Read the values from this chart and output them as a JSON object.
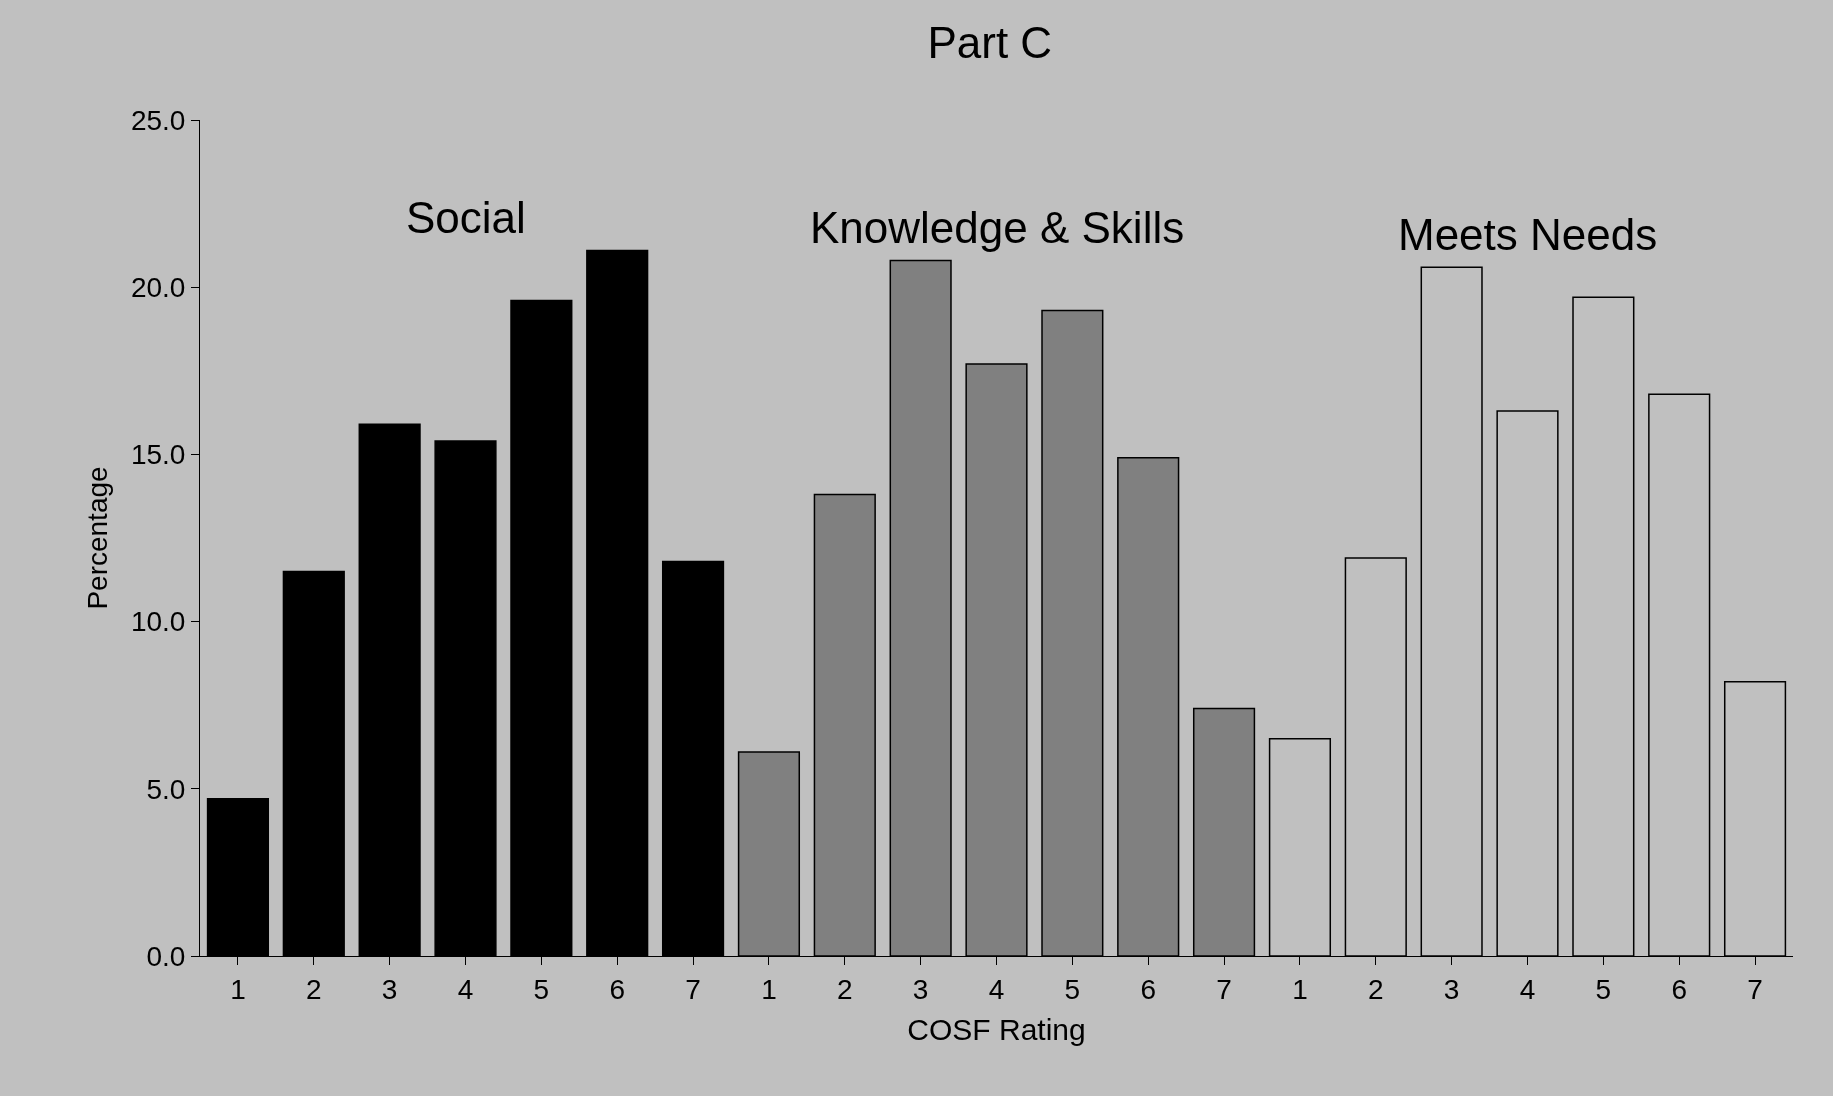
{
  "chart_data": {
    "type": "bar",
    "title": "Part C",
    "xlabel": "COSF Rating",
    "ylabel": "Percentage",
    "categories": [
      "1",
      "2",
      "3",
      "4",
      "5",
      "6",
      "7",
      "1",
      "2",
      "3",
      "4",
      "5",
      "6",
      "7",
      "1",
      "2",
      "3",
      "4",
      "5",
      "6",
      "7"
    ],
    "series": [
      {
        "name": "Social",
        "color": "#000000",
        "values": [
          4.7,
          11.5,
          15.9,
          15.4,
          19.6,
          21.1,
          11.8,
          null,
          null,
          null,
          null,
          null,
          null,
          null,
          null,
          null,
          null,
          null,
          null,
          null,
          null
        ]
      },
      {
        "name": "Knowledge & Skills",
        "color": "#808080",
        "values": [
          null,
          null,
          null,
          null,
          null,
          null,
          null,
          6.1,
          13.8,
          20.8,
          17.7,
          19.3,
          14.9,
          7.4,
          null,
          null,
          null,
          null,
          null,
          null,
          null
        ]
      },
      {
        "name": "Meets Needs",
        "color": "#c0c0c0",
        "values": [
          null,
          null,
          null,
          null,
          null,
          null,
          null,
          null,
          null,
          null,
          null,
          null,
          null,
          null,
          6.5,
          11.9,
          20.6,
          16.3,
          19.7,
          16.8,
          8.2
        ]
      }
    ],
    "ylim": [
      0,
      25
    ],
    "yticks": [
      {
        "value": 0,
        "label": "0.0"
      },
      {
        "value": 5,
        "label": "5.0"
      },
      {
        "value": 10,
        "label": "10.0"
      },
      {
        "value": 15,
        "label": "15.0"
      },
      {
        "value": 20,
        "label": "20.0"
      },
      {
        "value": 25,
        "label": "25.0"
      }
    ],
    "grid": false,
    "legend": false
  }
}
